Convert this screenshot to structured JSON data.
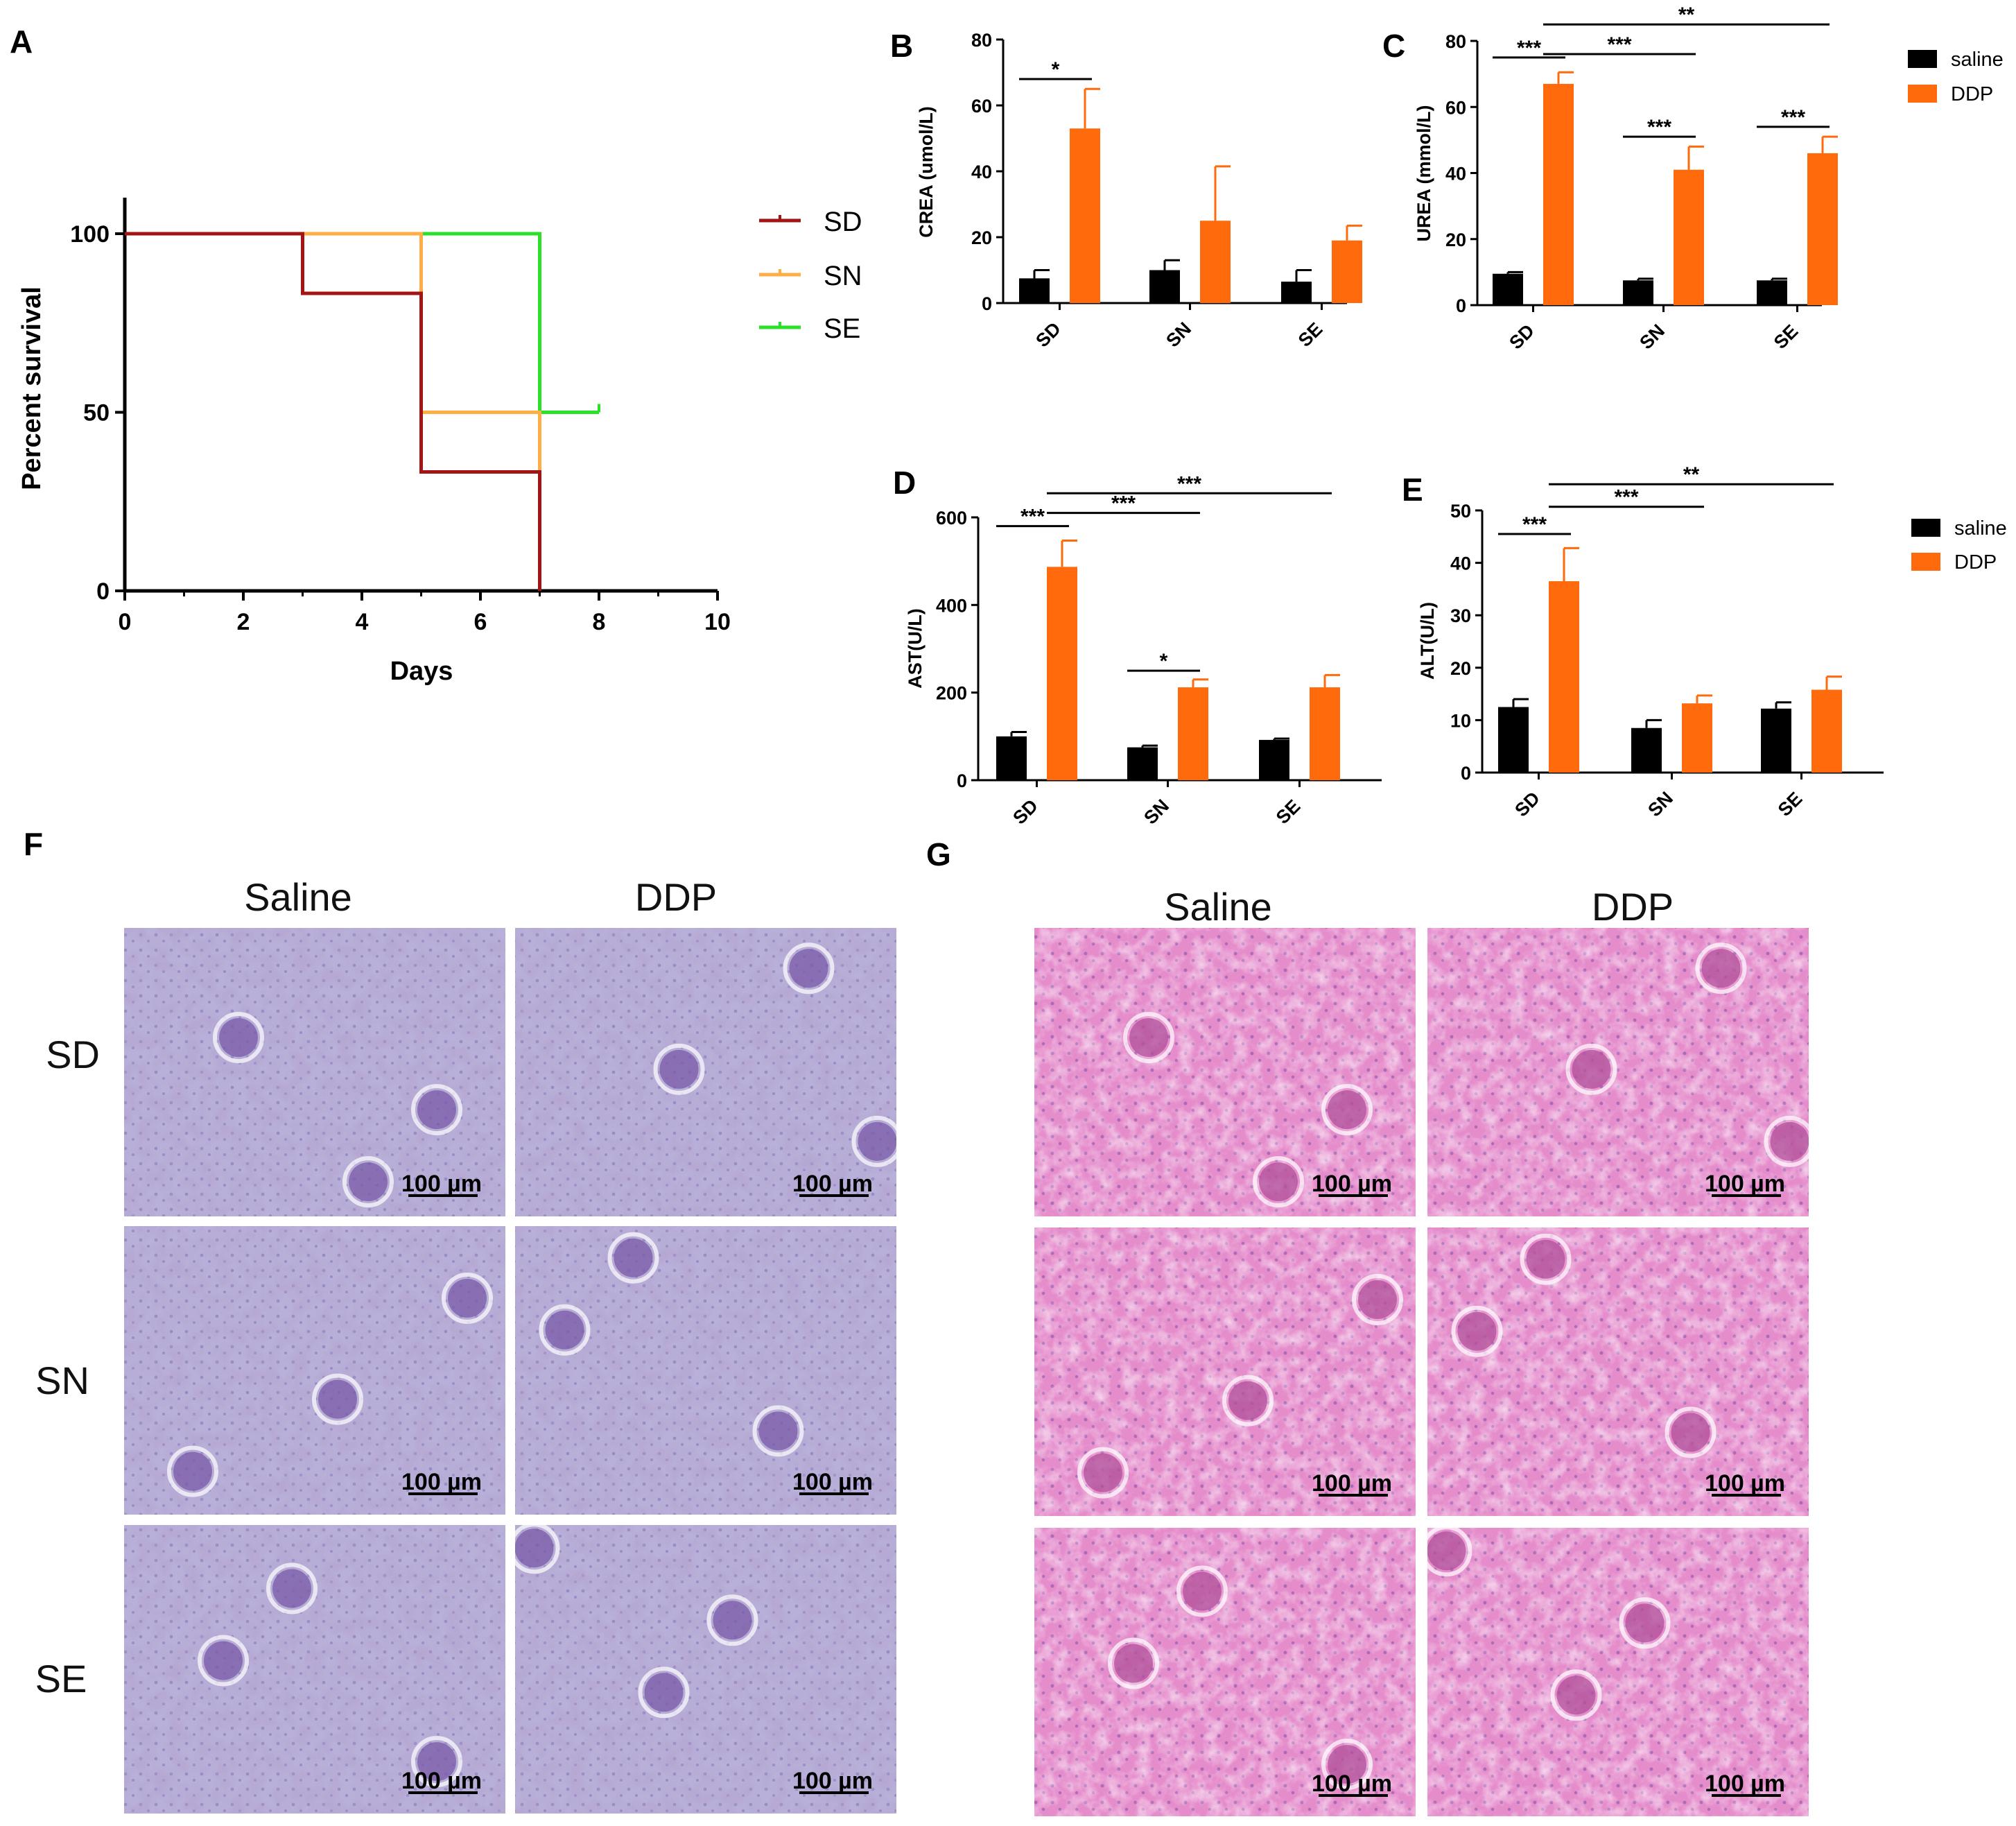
{
  "panel_labels": {
    "a": "A",
    "b": "B",
    "c": "C",
    "d": "D",
    "e": "E",
    "f": "F",
    "g": "G"
  },
  "colors": {
    "saline": "#000000",
    "ddp": "#ff6a0c",
    "sd": "#a31414",
    "sn": "#ffae45",
    "se": "#2bdf2b"
  },
  "chart_data": [
    {
      "id": "A",
      "type": "line",
      "title": "",
      "xlabel": "Days",
      "ylabel": "Percent survival",
      "xlim": [
        0,
        10
      ],
      "ylim": [
        0,
        110
      ],
      "xticks": [
        "0",
        "2",
        "4",
        "6",
        "8",
        "10"
      ],
      "yticks": [
        "0",
        "50",
        "100"
      ],
      "legend": [
        "SD",
        "SN",
        "SE"
      ],
      "series": [
        {
          "name": "SD",
          "x": [
            0,
            3,
            3,
            5,
            5,
            7,
            7
          ],
          "y": [
            100,
            100,
            83.3,
            83.3,
            33.3,
            33.3,
            0
          ]
        },
        {
          "name": "SN",
          "x": [
            0,
            5,
            5,
            7,
            7
          ],
          "y": [
            100,
            100,
            50,
            50,
            33.3
          ]
        },
        {
          "name": "SE",
          "x": [
            0,
            7,
            7,
            8
          ],
          "y": [
            100,
            100,
            50,
            50
          ]
        }
      ]
    },
    {
      "id": "B",
      "type": "bar",
      "categories": [
        "SD",
        "SN",
        "SE"
      ],
      "ylabel": "CREA (umol/L)",
      "ylim": [
        0,
        80
      ],
      "yticks": [
        "0",
        "20",
        "40",
        "60",
        "80"
      ],
      "series": [
        {
          "name": "saline",
          "values": [
            7.5,
            10,
            6.5
          ],
          "errors": [
            2.5,
            3,
            3.5
          ]
        },
        {
          "name": "DDP",
          "values": [
            53,
            25,
            19
          ],
          "errors": [
            12,
            16.5,
            4.5
          ]
        }
      ],
      "annotations": [
        {
          "text": "*",
          "from": "SD-saline",
          "to": "SD-DDP",
          "y": 68
        }
      ]
    },
    {
      "id": "C",
      "type": "bar",
      "categories": [
        "SD",
        "SN",
        "SE"
      ],
      "ylabel": "UREA (mmol/L)",
      "ylim": [
        0,
        80
      ],
      "yticks": [
        "0",
        "20",
        "40",
        "60",
        "80"
      ],
      "series": [
        {
          "name": "saline",
          "values": [
            9.5,
            7.5,
            7.5
          ],
          "errors": [
            0.5,
            0.5,
            0.5
          ]
        },
        {
          "name": "DDP",
          "values": [
            67,
            41,
            46
          ],
          "errors": [
            3.5,
            7,
            5
          ]
        }
      ],
      "annotations": [
        {
          "text": "***",
          "from": "SD-saline",
          "to": "SD-DDP",
          "y": 75
        },
        {
          "text": "***",
          "from": "SN-saline",
          "to": "SN-DDP",
          "y": 51
        },
        {
          "text": "***",
          "from": "SE-saline",
          "to": "SE-DDP",
          "y": 54
        },
        {
          "text": "***",
          "from": "SD-DDP",
          "to": "SN-DDP",
          "y": 76
        },
        {
          "text": "**",
          "from": "SD-DDP",
          "to": "SE-DDP",
          "y": 85
        }
      ]
    },
    {
      "id": "D",
      "type": "bar",
      "categories": [
        "SD",
        "SN",
        "SE"
      ],
      "ylabel": "AST(U/L)",
      "ylim": [
        0,
        600
      ],
      "yticks": [
        "0",
        "200",
        "400",
        "600"
      ],
      "series": [
        {
          "name": "saline",
          "values": [
            100,
            75,
            92
          ],
          "errors": [
            10,
            4,
            3
          ]
        },
        {
          "name": "DDP",
          "values": [
            487,
            212,
            212
          ],
          "errors": [
            60,
            18,
            28
          ]
        }
      ],
      "annotations": [
        {
          "text": "***",
          "from": "SD-saline",
          "to": "SD-DDP",
          "y": 580
        },
        {
          "text": "***",
          "from": "SD-DDP",
          "to": "SN-DDP",
          "y": 610
        },
        {
          "text": "***",
          "from": "SD-DDP",
          "to": "SE-DDP",
          "y": 655
        },
        {
          "text": "*",
          "from": "SN-saline",
          "to": "SN-DDP",
          "y": 250
        }
      ]
    },
    {
      "id": "E",
      "type": "bar",
      "categories": [
        "SD",
        "SN",
        "SE"
      ],
      "ylabel": "ALT(U/L)",
      "ylim": [
        0,
        50
      ],
      "yticks": [
        "0",
        "10",
        "20",
        "30",
        "40",
        "50"
      ],
      "series": [
        {
          "name": "saline",
          "values": [
            12.5,
            8.5,
            12.2
          ],
          "errors": [
            1.5,
            1.5,
            1.2
          ]
        },
        {
          "name": "DDP",
          "values": [
            36.5,
            13.2,
            15.8
          ],
          "errors": [
            6.3,
            1.5,
            2.5
          ]
        }
      ],
      "annotations": [
        {
          "text": "***",
          "from": "SD-saline",
          "to": "SD-DDP",
          "y": 45.5
        },
        {
          "text": "***",
          "from": "SD-DDP",
          "to": "SN-DDP",
          "y": 50.7
        },
        {
          "text": "**",
          "from": "SD-DDP",
          "to": "SE-DDP",
          "y": 55
        }
      ]
    }
  ],
  "legend_bars": {
    "saline": "saline",
    "ddp": "DDP"
  },
  "histology": {
    "col_saline": "Saline",
    "col_ddp": "DDP",
    "rows": [
      "SD",
      "SN",
      "SE"
    ],
    "scale_bar": "100 µm"
  }
}
